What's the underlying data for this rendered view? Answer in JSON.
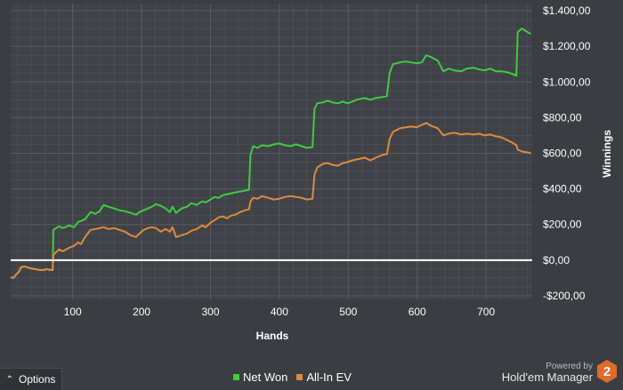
{
  "chart_data": {
    "type": "line",
    "xlabel": "Hands",
    "ylabel": "Winnings",
    "xlim": [
      10,
      767
    ],
    "ylim": [
      -220,
      1440
    ],
    "x_ticks": [
      100,
      200,
      300,
      400,
      500,
      600,
      700
    ],
    "y_ticks": [
      {
        "value": -200,
        "label": "-$200,00"
      },
      {
        "value": 0,
        "label": "$0,00"
      },
      {
        "value": 200,
        "label": "$200,00"
      },
      {
        "value": 400,
        "label": "$400,00"
      },
      {
        "value": 600,
        "label": "$600,00"
      },
      {
        "value": 800,
        "label": "$800,00"
      },
      {
        "value": 1000,
        "label": "$1.000,00"
      },
      {
        "value": 1200,
        "label": "$1.200,00"
      },
      {
        "value": 1400,
        "label": "$1.400,00"
      }
    ],
    "grid": true,
    "zero_line": true,
    "legend_position": "bottom-center",
    "series": [
      {
        "name": "Net Won",
        "color": "#3fcc3f",
        "points": [
          [
            10,
            -95
          ],
          [
            14,
            -100
          ],
          [
            18,
            -80
          ],
          [
            22,
            -65
          ],
          [
            25,
            -40
          ],
          [
            30,
            -35
          ],
          [
            38,
            -45
          ],
          [
            45,
            -50
          ],
          [
            52,
            -55
          ],
          [
            58,
            -55
          ],
          [
            63,
            -50
          ],
          [
            67,
            -55
          ],
          [
            71,
            -55
          ],
          [
            72,
            170
          ],
          [
            80,
            190
          ],
          [
            86,
            180
          ],
          [
            95,
            195
          ],
          [
            102,
            185
          ],
          [
            108,
            215
          ],
          [
            112,
            220
          ],
          [
            118,
            230
          ],
          [
            126,
            270
          ],
          [
            133,
            260
          ],
          [
            139,
            275
          ],
          [
            145,
            310
          ],
          [
            152,
            300
          ],
          [
            160,
            290
          ],
          [
            168,
            280
          ],
          [
            176,
            275
          ],
          [
            184,
            265
          ],
          [
            192,
            255
          ],
          [
            197,
            270
          ],
          [
            203,
            280
          ],
          [
            209,
            290
          ],
          [
            215,
            300
          ],
          [
            221,
            315
          ],
          [
            228,
            305
          ],
          [
            235,
            290
          ],
          [
            241,
            270
          ],
          [
            245,
            300
          ],
          [
            250,
            265
          ],
          [
            258,
            290
          ],
          [
            266,
            300
          ],
          [
            272,
            320
          ],
          [
            280,
            310
          ],
          [
            288,
            330
          ],
          [
            293,
            325
          ],
          [
            300,
            340
          ],
          [
            306,
            355
          ],
          [
            312,
            350
          ],
          [
            318,
            365
          ],
          [
            324,
            370
          ],
          [
            330,
            375
          ],
          [
            336,
            380
          ],
          [
            343,
            385
          ],
          [
            350,
            390
          ],
          [
            356,
            395
          ],
          [
            358,
            590
          ],
          [
            362,
            640
          ],
          [
            368,
            630
          ],
          [
            375,
            645
          ],
          [
            384,
            640
          ],
          [
            392,
            650
          ],
          [
            400,
            655
          ],
          [
            408,
            645
          ],
          [
            416,
            640
          ],
          [
            424,
            650
          ],
          [
            432,
            640
          ],
          [
            440,
            630
          ],
          [
            448,
            635
          ],
          [
            451,
            850
          ],
          [
            455,
            880
          ],
          [
            463,
            885
          ],
          [
            470,
            895
          ],
          [
            477,
            885
          ],
          [
            485,
            880
          ],
          [
            492,
            890
          ],
          [
            499,
            880
          ],
          [
            506,
            890
          ],
          [
            512,
            900
          ],
          [
            518,
            905
          ],
          [
            524,
            910
          ],
          [
            532,
            900
          ],
          [
            540,
            910
          ],
          [
            549,
            915
          ],
          [
            556,
            920
          ],
          [
            560,
            1050
          ],
          [
            565,
            1100
          ],
          [
            575,
            1110
          ],
          [
            583,
            1115
          ],
          [
            591,
            1110
          ],
          [
            599,
            1105
          ],
          [
            607,
            1110
          ],
          [
            613,
            1150
          ],
          [
            620,
            1140
          ],
          [
            630,
            1120
          ],
          [
            638,
            1060
          ],
          [
            646,
            1075
          ],
          [
            654,
            1065
          ],
          [
            664,
            1060
          ],
          [
            672,
            1075
          ],
          [
            682,
            1080
          ],
          [
            690,
            1070
          ],
          [
            698,
            1065
          ],
          [
            706,
            1075
          ],
          [
            714,
            1060
          ],
          [
            722,
            1060
          ],
          [
            730,
            1055
          ],
          [
            738,
            1045
          ],
          [
            744,
            1035
          ],
          [
            746,
            1280
          ],
          [
            752,
            1300
          ],
          [
            760,
            1280
          ],
          [
            765,
            1270
          ]
        ]
      },
      {
        "name": "All-In EV",
        "color": "#e08a3c",
        "points": [
          [
            10,
            -95
          ],
          [
            14,
            -100
          ],
          [
            18,
            -80
          ],
          [
            22,
            -65
          ],
          [
            25,
            -40
          ],
          [
            30,
            -35
          ],
          [
            38,
            -45
          ],
          [
            45,
            -50
          ],
          [
            52,
            -55
          ],
          [
            58,
            -55
          ],
          [
            63,
            -50
          ],
          [
            67,
            -55
          ],
          [
            71,
            -55
          ],
          [
            72,
            30
          ],
          [
            80,
            60
          ],
          [
            86,
            50
          ],
          [
            95,
            70
          ],
          [
            102,
            80
          ],
          [
            108,
            100
          ],
          [
            112,
            90
          ],
          [
            118,
            130
          ],
          [
            126,
            170
          ],
          [
            133,
            175
          ],
          [
            139,
            180
          ],
          [
            145,
            185
          ],
          [
            152,
            175
          ],
          [
            160,
            180
          ],
          [
            168,
            170
          ],
          [
            176,
            160
          ],
          [
            184,
            140
          ],
          [
            192,
            130
          ],
          [
            197,
            150
          ],
          [
            203,
            170
          ],
          [
            209,
            180
          ],
          [
            215,
            185
          ],
          [
            221,
            180
          ],
          [
            228,
            160
          ],
          [
            235,
            175
          ],
          [
            241,
            160
          ],
          [
            245,
            185
          ],
          [
            250,
            130
          ],
          [
            258,
            140
          ],
          [
            266,
            150
          ],
          [
            272,
            165
          ],
          [
            280,
            175
          ],
          [
            288,
            195
          ],
          [
            293,
            185
          ],
          [
            300,
            210
          ],
          [
            306,
            225
          ],
          [
            312,
            240
          ],
          [
            318,
            245
          ],
          [
            324,
            235
          ],
          [
            330,
            250
          ],
          [
            336,
            255
          ],
          [
            343,
            270
          ],
          [
            350,
            280
          ],
          [
            356,
            285
          ],
          [
            358,
            330
          ],
          [
            362,
            350
          ],
          [
            368,
            345
          ],
          [
            375,
            360
          ],
          [
            384,
            350
          ],
          [
            392,
            340
          ],
          [
            400,
            345
          ],
          [
            408,
            355
          ],
          [
            416,
            360
          ],
          [
            424,
            355
          ],
          [
            432,
            350
          ],
          [
            440,
            340
          ],
          [
            448,
            345
          ],
          [
            451,
            480
          ],
          [
            455,
            520
          ],
          [
            463,
            540
          ],
          [
            470,
            545
          ],
          [
            477,
            535
          ],
          [
            485,
            530
          ],
          [
            492,
            545
          ],
          [
            499,
            550
          ],
          [
            506,
            560
          ],
          [
            512,
            565
          ],
          [
            518,
            570
          ],
          [
            524,
            575
          ],
          [
            532,
            560
          ],
          [
            540,
            575
          ],
          [
            549,
            590
          ],
          [
            556,
            595
          ],
          [
            560,
            680
          ],
          [
            565,
            720
          ],
          [
            575,
            740
          ],
          [
            583,
            745
          ],
          [
            591,
            750
          ],
          [
            599,
            745
          ],
          [
            607,
            760
          ],
          [
            613,
            770
          ],
          [
            620,
            755
          ],
          [
            630,
            740
          ],
          [
            638,
            700
          ],
          [
            646,
            710
          ],
          [
            654,
            715
          ],
          [
            664,
            705
          ],
          [
            672,
            710
          ],
          [
            682,
            705
          ],
          [
            690,
            710
          ],
          [
            698,
            700
          ],
          [
            706,
            705
          ],
          [
            714,
            695
          ],
          [
            722,
            690
          ],
          [
            730,
            675
          ],
          [
            738,
            660
          ],
          [
            744,
            645
          ],
          [
            746,
            620
          ],
          [
            752,
            610
          ],
          [
            760,
            605
          ],
          [
            765,
            600
          ]
        ]
      }
    ]
  },
  "options_label": "Options",
  "options_icon": "chevron-up-icon",
  "legend": [
    {
      "label": "Net Won",
      "color": "#3fcc3f"
    },
    {
      "label": "All-In EV",
      "color": "#e08a3c"
    }
  ],
  "branding": {
    "powered_by": "Powered by",
    "product": "Hold'em Manager",
    "badge": "2",
    "badge_color": "#e06a2a"
  }
}
